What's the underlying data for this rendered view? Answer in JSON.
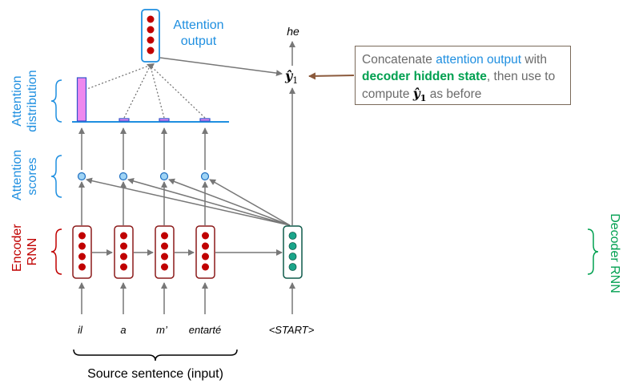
{
  "attention_output_label": [
    "Attention",
    "output"
  ],
  "side_labels": {
    "attention_distribution": [
      "Attention",
      "distribution"
    ],
    "attention_scores": [
      "Attention",
      "scores"
    ],
    "encoder_rnn": [
      "Encoder",
      "RNN"
    ],
    "decoder_rnn": "Decoder RNN"
  },
  "source_words": [
    "il",
    "a",
    "m’",
    "entarté"
  ],
  "decoder_input": "<START>",
  "decoder_output_word": "he",
  "y_hat_label": "ŷ",
  "y_hat_subscript": "1",
  "attention_weights": [
    0.73,
    0.09,
    0.09,
    0.09
  ],
  "callout": {
    "part1": "Concatenate ",
    "attention_output": "attention output",
    "part2": " with ",
    "decoder_hidden_state": "decoder hidden state",
    "part3": ", then use to compute ",
    "y_hat": "ŷ",
    "y_hat_sub": "1",
    "part4": " as before"
  },
  "source_sentence_label": "Source sentence (input)",
  "colors": {
    "blue": "#1f8fe0",
    "encoder_red": "#c00000",
    "encoder_border": "#8b1a1a",
    "decoder_teal": "#1aa58a",
    "decoder_border": "#0f5a4a",
    "bar_pink": "#ee88ee",
    "bar_border": "#3355cc",
    "gray": "#777777"
  }
}
